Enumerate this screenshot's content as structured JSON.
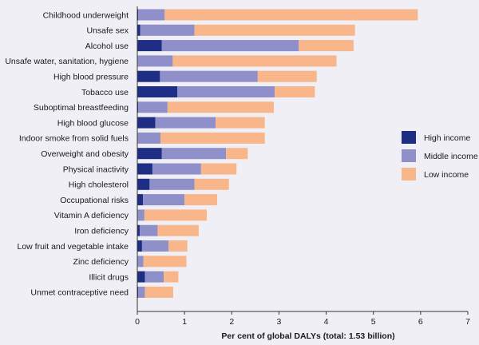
{
  "chart_data": {
    "type": "bar",
    "orientation": "horizontal",
    "stacked": true,
    "title": "",
    "xlabel": "Per cent of global DALYs (total: 1.53 billion)",
    "ylabel": "",
    "xlim": [
      0,
      7
    ],
    "xticks": [
      "0",
      "1",
      "2",
      "3",
      "4",
      "5",
      "6",
      "7"
    ],
    "grid": false,
    "legend_position": "right",
    "categories": [
      "Childhood underweight",
      "Unsafe sex",
      "Alcohol use",
      "Unsafe water, sanitation, hygiene",
      "High blood pressure",
      "Tobacco use",
      "Suboptimal breastfeeding",
      "High blood glucose",
      "Indoor smoke from solid fuels",
      "Overweight and obesity",
      "Physical inactivity",
      "High cholesterol",
      "Occupational risks",
      "Vitamin A deficiency",
      "Iron deficiency",
      "Low fruit and vegetable intake",
      "Zinc deficiency",
      "Illicit drugs",
      "Unmet contraceptive need"
    ],
    "series": [
      {
        "name": "High income",
        "color": "#1f2e85",
        "values": [
          0.02,
          0.06,
          0.52,
          0.01,
          0.48,
          0.85,
          0.02,
          0.38,
          0.01,
          0.52,
          0.32,
          0.26,
          0.12,
          0.01,
          0.05,
          0.1,
          0.01,
          0.16,
          0.02
        ]
      },
      {
        "name": "Middle income",
        "color": "#8f8fc9",
        "values": [
          0.56,
          1.15,
          2.9,
          0.74,
          2.07,
          2.06,
          0.62,
          1.28,
          0.48,
          1.36,
          1.03,
          0.95,
          0.88,
          0.14,
          0.38,
          0.56,
          0.12,
          0.4,
          0.14
        ]
      },
      {
        "name": "Low income",
        "color": "#f9b68b",
        "values": [
          5.36,
          3.4,
          1.16,
          3.47,
          1.25,
          0.85,
          2.25,
          1.04,
          2.21,
          0.46,
          0.75,
          0.73,
          0.69,
          1.32,
          0.87,
          0.4,
          0.91,
          0.31,
          0.6
        ]
      }
    ]
  }
}
